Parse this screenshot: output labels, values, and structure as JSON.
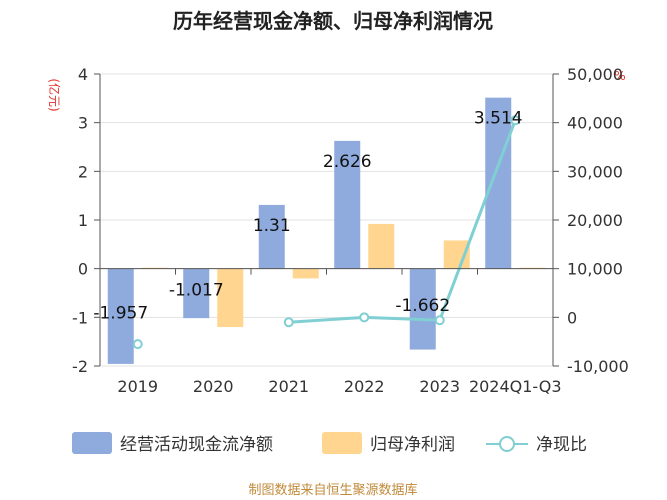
{
  "chart_data": {
    "type": "bar",
    "title": "历年经营现金净额、归母净利润情况",
    "categories": [
      "2019",
      "2020",
      "2021",
      "2022",
      "2023",
      "2024Q1-Q3"
    ],
    "left_unit": "(亿元)",
    "right_unit": "%",
    "ylim_left": [
      -2,
      4
    ],
    "yticks_left": [
      "-2",
      "-1",
      "0",
      "1",
      "2",
      "3",
      "4"
    ],
    "ylim_right": [
      -10000,
      50000
    ],
    "yticks_right": [
      "-10,000",
      "0",
      "10,000",
      "20,000",
      "30,000",
      "40,000",
      "50,000"
    ],
    "series": [
      {
        "name": "经营活动现金流净额",
        "axis": "left",
        "color": "#8faadc",
        "values": [
          -1.957,
          -1.017,
          1.31,
          2.626,
          -1.662,
          3.514
        ],
        "labels": [
          "-1.957",
          "-1.017",
          "1.31",
          "2.626",
          "-1.662",
          "3.514"
        ]
      },
      {
        "name": "归母净利润",
        "axis": "left",
        "color": "#ffd58f",
        "values": [
          0.02,
          -1.2,
          -0.2,
          0.92,
          0.58,
          0.02
        ]
      },
      {
        "name": "净现比",
        "axis": "right",
        "color": "#7fcfd3",
        "values": [
          -5500,
          null,
          -1000,
          0,
          -600,
          40500
        ]
      }
    ],
    "source": "制图数据来自恒生聚源数据库"
  }
}
